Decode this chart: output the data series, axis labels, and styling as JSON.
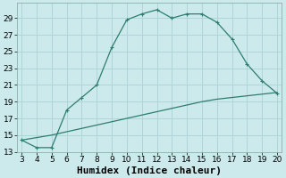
{
  "xlabel": "Humidex (Indice chaleur)",
  "background_color": "#cce9ec",
  "grid_color": "#b0d5d8",
  "line_color": "#2e7d6e",
  "xlim": [
    3,
    20
  ],
  "ylim": [
    13,
    30
  ],
  "xticks": [
    3,
    4,
    5,
    6,
    7,
    8,
    9,
    10,
    11,
    12,
    13,
    14,
    15,
    16,
    17,
    18,
    19,
    20
  ],
  "yticks": [
    13,
    15,
    17,
    19,
    21,
    23,
    25,
    27,
    29
  ],
  "curve1_x": [
    3,
    4,
    5,
    6,
    7,
    8,
    9,
    10,
    11,
    12,
    13,
    14,
    15,
    16,
    17,
    18,
    19,
    20
  ],
  "curve1_y": [
    14.4,
    13.5,
    13.5,
    18.0,
    19.5,
    21.0,
    25.5,
    28.8,
    29.5,
    30.0,
    29.0,
    29.5,
    29.5,
    28.5,
    26.5,
    23.5,
    21.5,
    20.0
  ],
  "curve2_x": [
    3,
    4,
    5,
    6,
    7,
    8,
    9,
    10,
    11,
    12,
    13,
    14,
    15,
    16,
    17,
    18,
    19,
    20
  ],
  "curve2_y": [
    14.4,
    14.7,
    15.0,
    15.4,
    15.8,
    16.2,
    16.6,
    17.0,
    17.4,
    17.8,
    18.2,
    18.6,
    19.0,
    19.3,
    19.5,
    19.7,
    19.9,
    20.1
  ],
  "markersize": 2.5,
  "linewidth": 0.9,
  "xlabel_fontsize": 8,
  "tick_fontsize": 6.5
}
